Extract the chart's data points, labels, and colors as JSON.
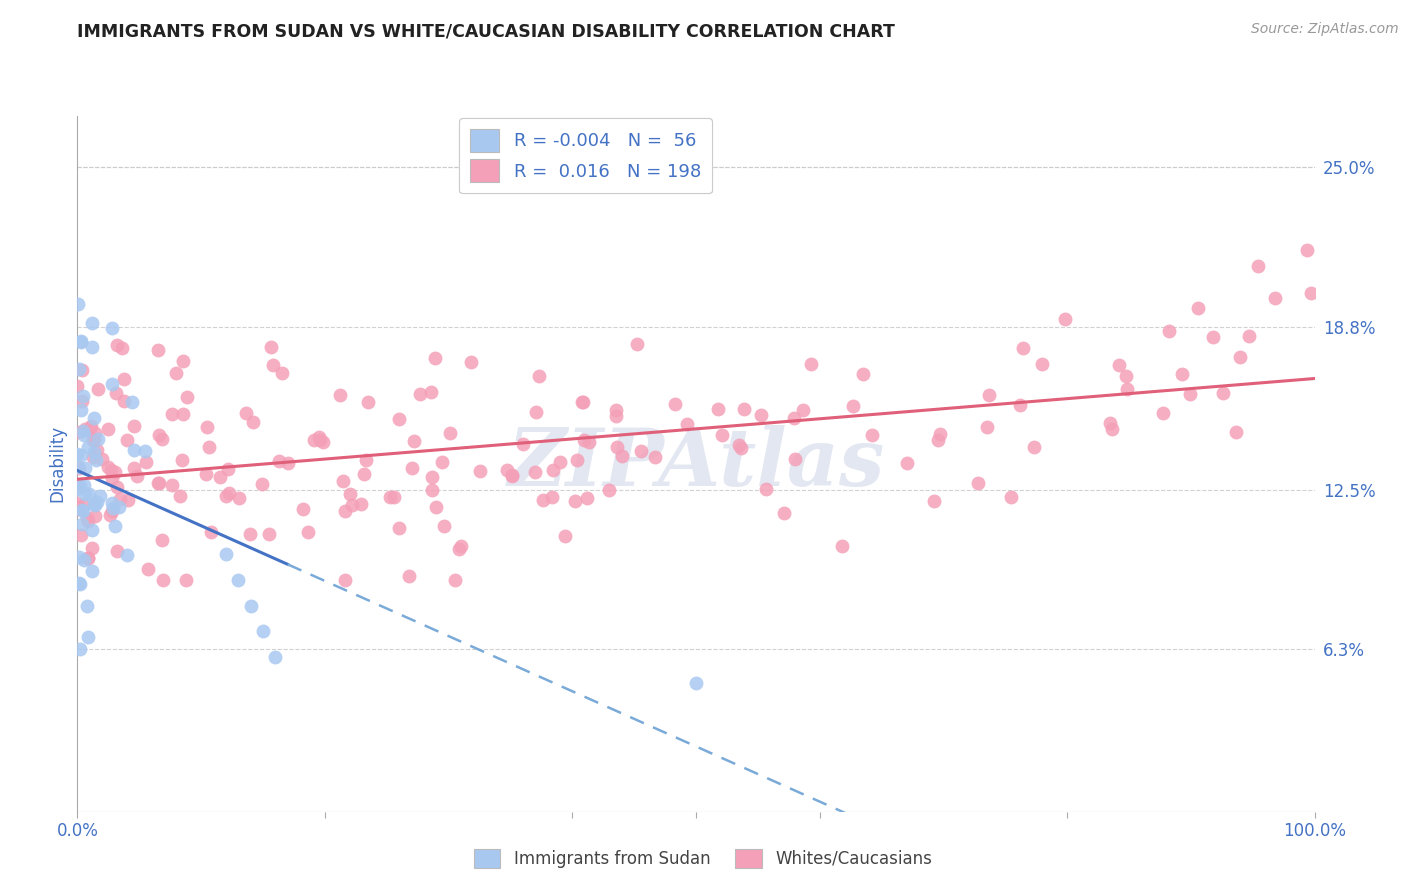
{
  "title": "IMMIGRANTS FROM SUDAN VS WHITE/CAUCASIAN DISABILITY CORRELATION CHART",
  "source": "Source: ZipAtlas.com",
  "ylabel": "Disability",
  "color_blue": "#A8C8F0",
  "color_pink": "#F4A0B8",
  "color_red_line": "#E0607A",
  "color_blue_line": "#4472C4",
  "color_blue_dashed": "#7AAAD8",
  "watermark": "ZIPAtlas",
  "background_color": "#FFFFFF",
  "grid_color": "#CCCCCC",
  "title_color": "#222222",
  "axis_label_color": "#4472C4",
  "legend_label1": "R = -0.004   N =  56",
  "legend_label2": "R =  0.016   N = 198",
  "bottom_label1": "Immigrants from Sudan",
  "bottom_label2": "Whites/Caucasians"
}
